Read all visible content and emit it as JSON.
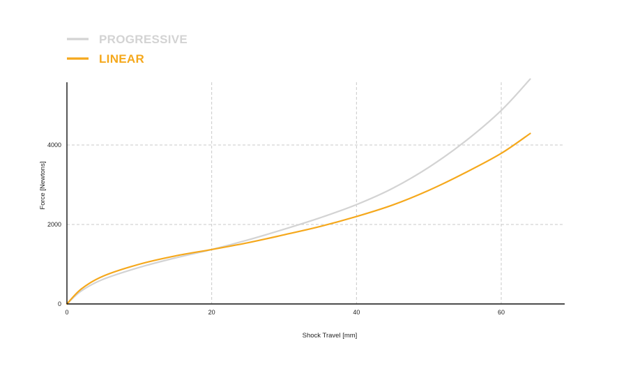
{
  "chart_data": {
    "type": "line",
    "title": "",
    "xlabel": "Shock Travel [mm]",
    "ylabel": "Force [Newtons]",
    "xlim": [
      0,
      70
    ],
    "ylim": [
      0,
      5600
    ],
    "xticks": [
      0,
      20,
      40,
      60
    ],
    "yticks": [
      0,
      2000,
      4000
    ],
    "grid": true,
    "legend": "top-left",
    "series": [
      {
        "name": "PROGRESSIVE",
        "color": "#d3d3d3",
        "x": [
          0,
          2,
          5,
          10,
          15,
          20,
          25,
          30,
          35,
          40,
          45,
          50,
          55,
          60,
          64
        ],
        "y": [
          0,
          330,
          620,
          920,
          1160,
          1370,
          1610,
          1880,
          2170,
          2500,
          2910,
          3440,
          4090,
          4870,
          5660
        ]
      },
      {
        "name": "LINEAR",
        "color": "#f5a81c",
        "x": [
          0,
          2,
          5,
          10,
          15,
          20,
          25,
          30,
          35,
          40,
          45,
          50,
          55,
          60,
          64
        ],
        "y": [
          0,
          380,
          700,
          1000,
          1210,
          1370,
          1540,
          1740,
          1950,
          2200,
          2490,
          2860,
          3300,
          3790,
          4290
        ]
      }
    ]
  }
}
